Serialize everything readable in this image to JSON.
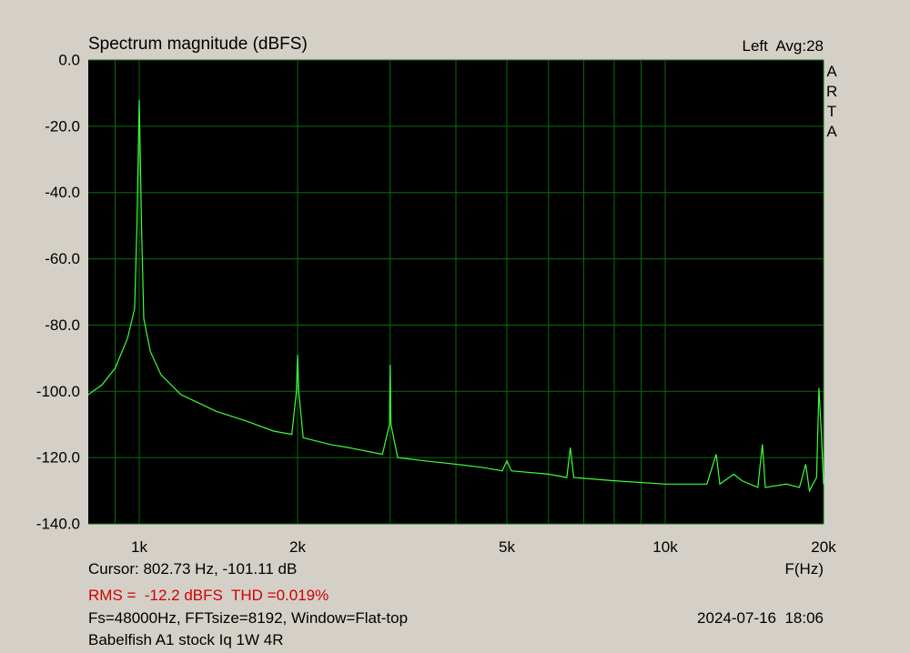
{
  "chart_data": {
    "type": "line",
    "title": "Spectrum magnitude (dBFS)",
    "channel_info": "Left  Avg:28",
    "watermark": "ARTA",
    "xlabel": "F(Hz)",
    "cursor": "Cursor: 802.73 Hz, -101.11 dB",
    "summary": "RMS =  -12.2 dBFS  THD =0.019%",
    "settings": "Fs=48000Hz, FFTsize=8192, Window=Flat-top",
    "timestamp": "2024-07-16  18:06",
    "caption": "Babelfish A1 stock Iq 1W 4R",
    "xscale": "log",
    "xlim": [
      800,
      20000
    ],
    "ylim": [
      -140,
      0
    ],
    "xticks": [
      {
        "value": 1000,
        "label": "1k"
      },
      {
        "value": 2000,
        "label": "2k"
      },
      {
        "value": 5000,
        "label": "5k"
      },
      {
        "value": 10000,
        "label": "10k"
      },
      {
        "value": 20000,
        "label": "20k"
      }
    ],
    "x_minor_ticks": [
      900,
      3000,
      4000,
      6000,
      7000,
      8000,
      9000
    ],
    "yticks": [
      {
        "value": 0,
        "label": "0.0"
      },
      {
        "value": -20,
        "label": "-20.0"
      },
      {
        "value": -40,
        "label": "-40.0"
      },
      {
        "value": -60,
        "label": "-60.0"
      },
      {
        "value": -80,
        "label": "-80.0"
      },
      {
        "value": -100,
        "label": "-100.0"
      },
      {
        "value": -120,
        "label": "-120.0"
      },
      {
        "value": -140,
        "label": "-140.0"
      }
    ],
    "grid": true,
    "color": "#3cff3c",
    "x": [
      800,
      850,
      900,
      950,
      980,
      990,
      1000,
      1010,
      1020,
      1050,
      1100,
      1200,
      1400,
      1600,
      1800,
      1950,
      1990,
      2000,
      2010,
      2050,
      2300,
      2500,
      2900,
      2990,
      3000,
      3010,
      3100,
      3500,
      4000,
      4500,
      4900,
      5000,
      5100,
      6000,
      6500,
      6600,
      6700,
      8000,
      10000,
      12000,
      12500,
      12700,
      13500,
      14000,
      15000,
      15300,
      15500,
      17000,
      18000,
      18500,
      18800,
      19400,
      19600,
      19800,
      20000
    ],
    "values": [
      -101,
      -98,
      -93,
      -84,
      -75,
      -50,
      -12,
      -50,
      -78,
      -88,
      -95,
      -101,
      -106,
      -109,
      -112,
      -113,
      -100,
      -89,
      -100,
      -114,
      -116,
      -117,
      -119,
      -110,
      -92,
      -110,
      -120,
      -121,
      -122,
      -123,
      -124,
      -121,
      -124,
      -125,
      -126,
      -117,
      -126,
      -127,
      -128,
      -128,
      -119,
      -128,
      -125,
      -127,
      -129,
      -116,
      -129,
      -128,
      -129,
      -122,
      -130,
      -126,
      -99,
      -112,
      -128
    ]
  }
}
